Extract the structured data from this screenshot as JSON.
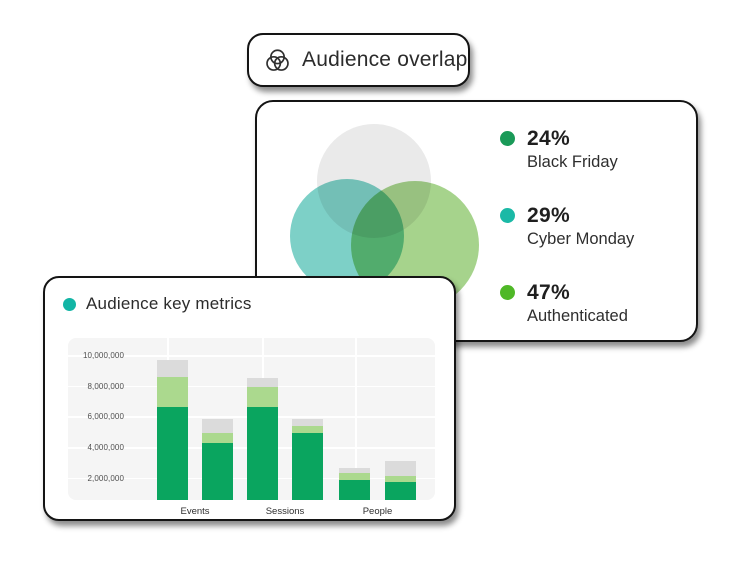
{
  "badge": {
    "label": "Audience overlap",
    "icon": "venn-diagram-icon",
    "icon_color": "#2f2f2f"
  },
  "overlap_card": {
    "venn": {
      "circles": [
        {
          "name": "top-gray-circle",
          "color": "#EAEAEA"
        },
        {
          "name": "left-teal-circle",
          "color": "#7DD0C7"
        },
        {
          "name": "right-green-circle",
          "color": "#A6D38C"
        }
      ]
    },
    "legend": [
      {
        "value": "24%",
        "label": "Black Friday",
        "color": "#1A9A58"
      },
      {
        "value": "29%",
        "label": "Cyber Monday",
        "color": "#1BB9A6"
      },
      {
        "value": "47%",
        "label": "Authenticated",
        "color": "#4FB827"
      }
    ]
  },
  "metrics_card": {
    "title": "Audience key metrics",
    "title_dot_color": "#12B5A5"
  },
  "chart_data": {
    "type": "bar",
    "stacked": true,
    "title": "Audience key metrics",
    "xlabel": "",
    "ylabel": "",
    "ylim": [
      0,
      10900000
    ],
    "grid": true,
    "legend_position": "none",
    "categories": [
      "Events",
      "Sessions",
      "People"
    ],
    "y_ticks": [
      {
        "value": 2000000,
        "label": "2,000,000"
      },
      {
        "value": 4000000,
        "label": "4,000,000"
      },
      {
        "value": 6000000,
        "label": "6,000,000"
      },
      {
        "value": 8000000,
        "label": "8,000,000"
      },
      {
        "value": 10000000,
        "label": "10,000,000"
      }
    ],
    "segment_order": [
      "dark-green",
      "light-green",
      "gray"
    ],
    "segment_colors": [
      "#0AA55F",
      "#ABD98E",
      "#DBDBDB"
    ],
    "bars": [
      {
        "category": "Events",
        "segments": [
          6700000,
          1950000,
          1100000
        ]
      },
      {
        "category": "Events",
        "segments": [
          4350000,
          700000,
          900000
        ]
      },
      {
        "category": "Sessions",
        "segments": [
          6700000,
          1300000,
          600000
        ]
      },
      {
        "category": "Sessions",
        "segments": [
          5000000,
          500000,
          450000
        ]
      },
      {
        "category": "People",
        "segments": [
          1950000,
          450000,
          350000
        ]
      },
      {
        "category": "People",
        "segments": [
          1800000,
          400000,
          1000000
        ]
      }
    ]
  }
}
